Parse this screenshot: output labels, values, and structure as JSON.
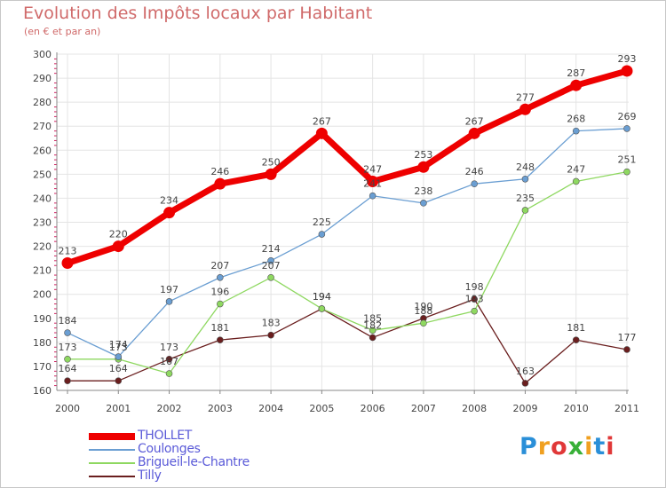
{
  "title": "Evolution des Impôts locaux par Habitant",
  "subtitle": "(en € et par an)",
  "logo": {
    "text": "Proxiti",
    "colors": [
      "#2a8fd8",
      "#f0a020",
      "#e03838",
      "#38b038",
      "#f0a020",
      "#2a8fd8",
      "#e03838"
    ]
  },
  "chart_data": {
    "type": "line",
    "title": "Evolution des Impôts locaux par Habitant",
    "subtitle": "(en € et par an)",
    "xlabel": "",
    "ylabel": "",
    "ylim": [
      160,
      300
    ],
    "yticks": [
      "160",
      "170",
      "180",
      "190",
      "200",
      "210",
      "220",
      "230",
      "240",
      "250",
      "260",
      "270",
      "280",
      "290",
      "300"
    ],
    "categories": [
      "2000",
      "2001",
      "2002",
      "2003",
      "2004",
      "2005",
      "2006",
      "2007",
      "2008",
      "2009",
      "2010",
      "2011"
    ],
    "grid": true,
    "legend_position": "bottom-left",
    "series": [
      {
        "name": "THOLLET",
        "color": "#ee0000",
        "values": [
          213,
          220,
          234,
          246,
          250,
          267,
          247,
          253,
          267,
          277,
          287,
          293
        ]
      },
      {
        "name": "Coulonges",
        "color": "#6a9ed2",
        "values": [
          184,
          174,
          197,
          207,
          214,
          225,
          241,
          238,
          246,
          248,
          268,
          269
        ]
      },
      {
        "name": "Brigueil-le-Chantre",
        "color": "#8ed860",
        "values": [
          173,
          173,
          167,
          196,
          207,
          194,
          185,
          188,
          193,
          235,
          247,
          251
        ]
      },
      {
        "name": "Tilly",
        "color": "#6a1e1e",
        "values": [
          164,
          164,
          173,
          181,
          183,
          194,
          182,
          190,
          198,
          163,
          181,
          177
        ]
      }
    ]
  }
}
